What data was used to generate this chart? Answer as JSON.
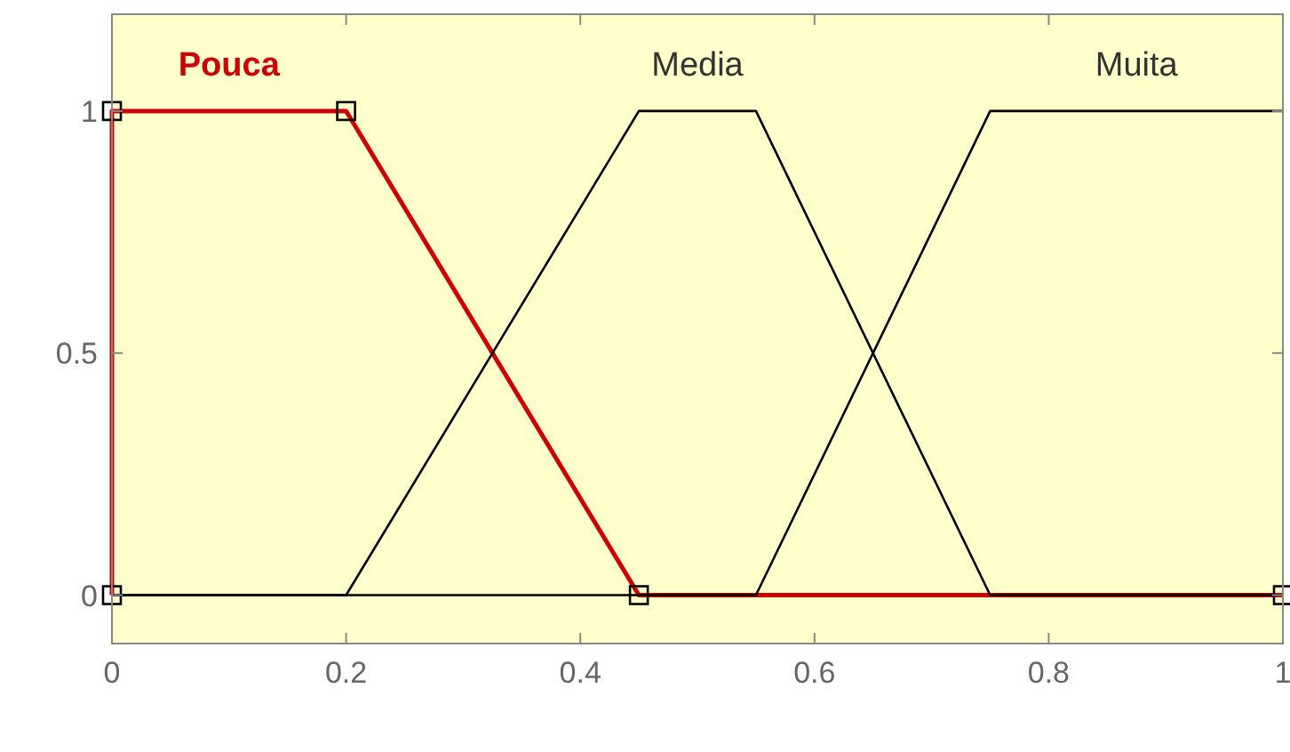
{
  "chart_data": {
    "type": "line",
    "xlim": [
      0,
      1
    ],
    "ylim": [
      -0.1,
      1.2
    ],
    "xticks": [
      0,
      0.2,
      0.4,
      0.6,
      0.8,
      1
    ],
    "yticks": [
      0,
      0.5,
      1
    ],
    "grid": false,
    "series": [
      {
        "name": "Pouca",
        "color": "#cc0000",
        "marker": "square",
        "x": [
          0,
          0,
          0.2,
          0.45,
          1
        ],
        "values": [
          0,
          1,
          1,
          0,
          0
        ]
      },
      {
        "name": "Media",
        "color": "#000000",
        "x": [
          0,
          0.2,
          0.45,
          0.55,
          0.75,
          1
        ],
        "values": [
          0,
          0,
          1,
          1,
          0,
          0
        ]
      },
      {
        "name": "Muita",
        "color": "#000000",
        "x": [
          0,
          0.55,
          0.75,
          1
        ],
        "values": [
          0,
          0,
          1,
          1
        ]
      }
    ]
  }
}
